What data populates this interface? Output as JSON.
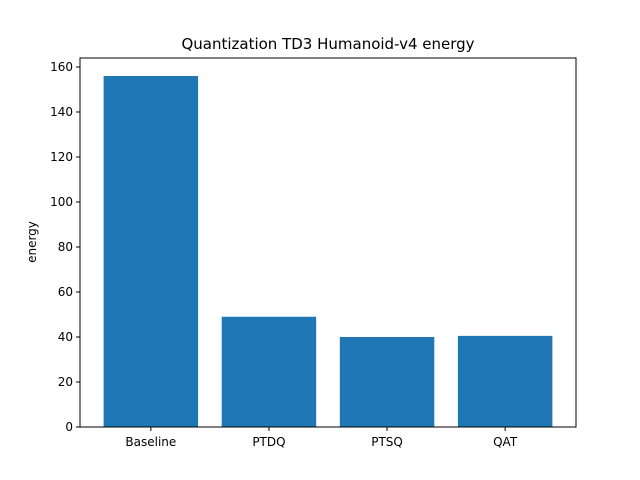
{
  "chart_data": {
    "type": "bar",
    "title": "Quantization TD3 Humanoid-v4 energy",
    "xlabel": "",
    "ylabel": "energy",
    "categories": [
      "Baseline",
      "PTDQ",
      "PTSQ",
      "QAT"
    ],
    "values": [
      156,
      49,
      40,
      40.5
    ],
    "ylim": [
      0,
      164
    ],
    "yticks": [
      0,
      20,
      40,
      60,
      80,
      100,
      120,
      140,
      160
    ],
    "grid": false,
    "bar_color": "#1f77b4"
  }
}
